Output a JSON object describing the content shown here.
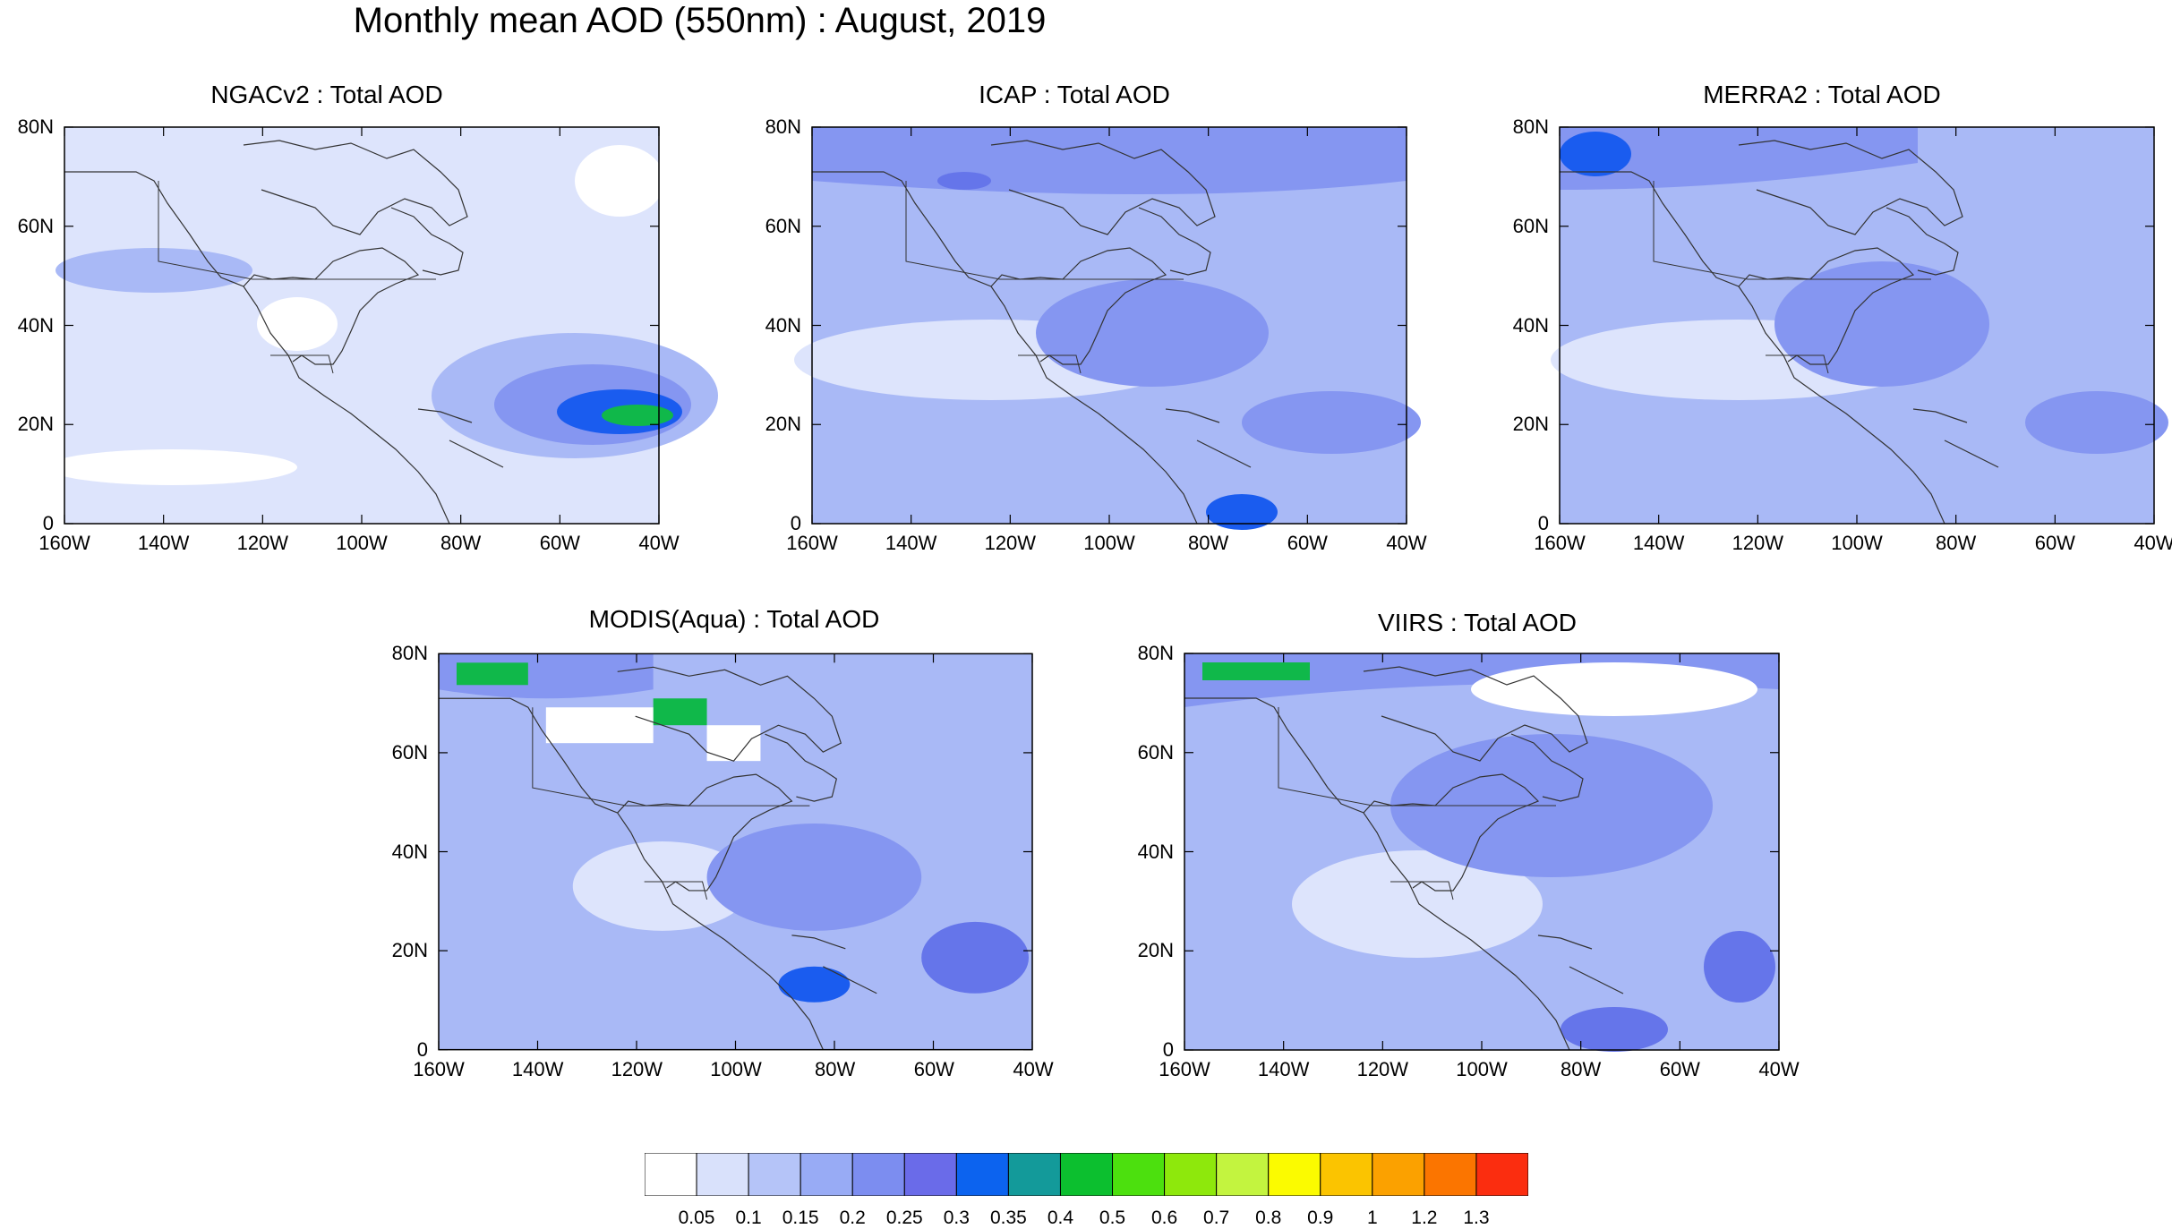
{
  "figure": {
    "title": "Monthly mean AOD (550nm) : August, 2019"
  },
  "panels": [
    {
      "id": "ngac",
      "title": "NGACv2 : Total AOD"
    },
    {
      "id": "icap",
      "title": "ICAP : Total AOD"
    },
    {
      "id": "merra",
      "title": "MERRA2 : Total AOD"
    },
    {
      "id": "modis",
      "title": "MODIS(Aqua) : Total AOD"
    },
    {
      "id": "viirs",
      "title": "VIIRS : Total AOD"
    }
  ],
  "axes": {
    "lat_ticks": [
      "0",
      "20N",
      "40N",
      "60N",
      "80N"
    ],
    "lon_ticks": [
      "160W",
      "140W",
      "120W",
      "100W",
      "80W",
      "60W",
      "40W"
    ],
    "lat_range": [
      0,
      80
    ],
    "lon_range": [
      -160,
      -40
    ]
  },
  "colorbar": {
    "colors": [
      "#ffffff",
      "#d9e1fb",
      "#b5c4f8",
      "#98abf5",
      "#7c8df0",
      "#6a6be9",
      "#0c63ef",
      "#139a9a",
      "#0cbf2f",
      "#4ce00e",
      "#8ee80c",
      "#c3f43f",
      "#fbfb00",
      "#fbc400",
      "#fba100",
      "#fb7500",
      "#fb2d0f"
    ],
    "labels": [
      "0.05",
      "0.1",
      "0.15",
      "0.2",
      "0.25",
      "0.3",
      "0.35",
      "0.4",
      "0.5",
      "0.6",
      "0.7",
      "0.8",
      "0.9",
      "1",
      "1.2",
      "1.3"
    ]
  },
  "map_colors": {
    "base": "#c9d4fa",
    "light": "#dde4fc",
    "mid": "#a9b9f6",
    "dark": "#8596f1",
    "deep": "#6575ea",
    "blue": "#1a5cef",
    "green": "#10b84a",
    "coast": "#333333"
  }
}
